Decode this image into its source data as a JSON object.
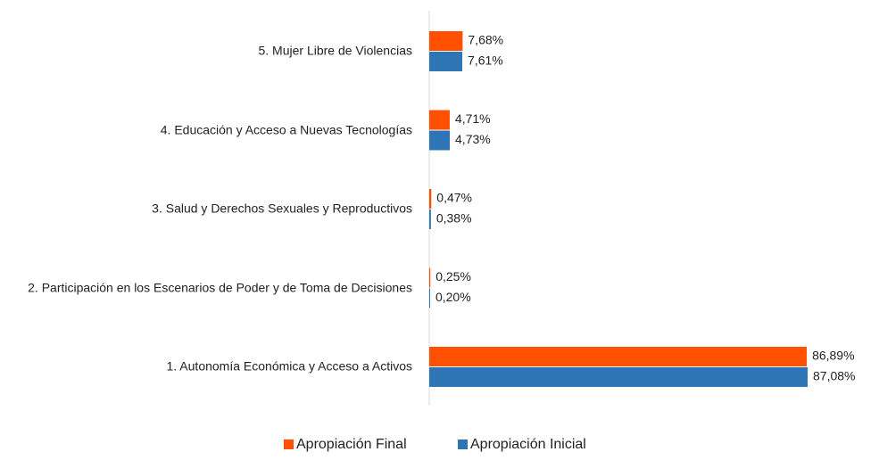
{
  "chart_data": {
    "type": "bar",
    "orientation": "horizontal",
    "categories": [
      "5. Mujer Libre de Violencias",
      "4. Educación y Acceso a Nuevas Tecnologías",
      "3. Salud y Derechos Sexuales y Reproductivos",
      "2. Participación en los Escenarios de Poder y de Toma de Decisiones",
      "1. Autonomía Económica y Acceso a Activos"
    ],
    "series": [
      {
        "name": "Apropiación Final",
        "color": "#fe5000",
        "values": [
          7.68,
          4.71,
          0.47,
          0.25,
          86.89
        ],
        "value_labels": [
          "7,68%",
          "4,71%",
          "0,47%",
          "0,25%",
          "86,89%"
        ]
      },
      {
        "name": "Apropiación Inicial",
        "color": "#2e75b6",
        "values": [
          7.61,
          4.73,
          0.38,
          0.2,
          87.08
        ],
        "value_labels": [
          "7,61%",
          "4,73%",
          "0,38%",
          "0,20%",
          "87,08%"
        ]
      }
    ],
    "legend": "bottom"
  }
}
